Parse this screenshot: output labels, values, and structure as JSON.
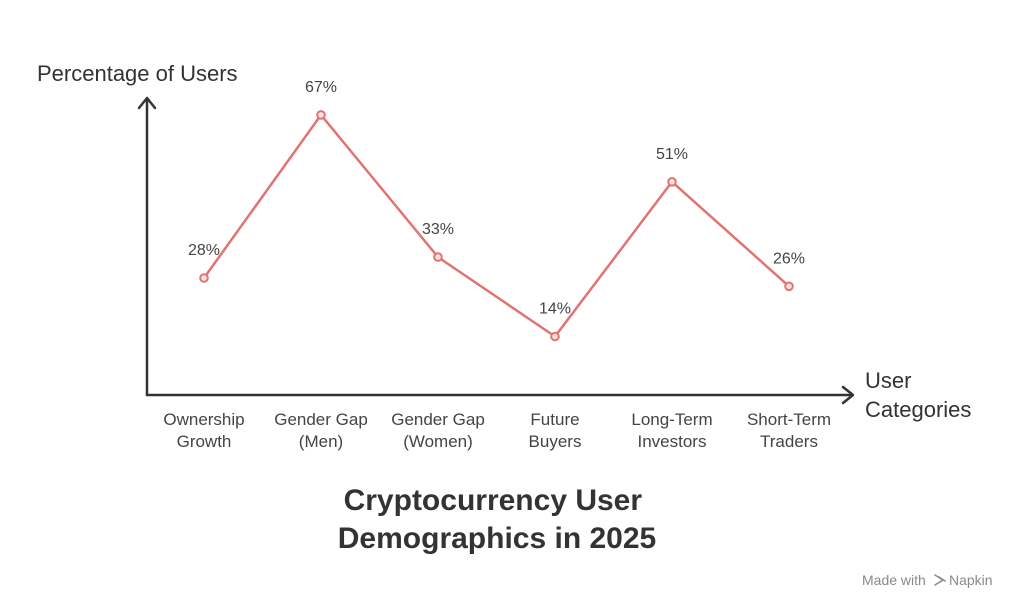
{
  "chart_data": {
    "type": "line",
    "title_lines": [
      "Cryptocurrency User",
      "Demographics in 2025"
    ],
    "ylabel": "Percentage of Users",
    "xlabel_lines": [
      "User",
      "Categories"
    ],
    "categories": [
      [
        "Ownership",
        "Growth"
      ],
      [
        "Gender Gap",
        "(Men)"
      ],
      [
        "Gender Gap",
        "(Women)"
      ],
      [
        "Future",
        "Buyers"
      ],
      [
        "Long-Term",
        "Investors"
      ],
      [
        "Short-Term",
        "Traders"
      ]
    ],
    "values": [
      28,
      67,
      33,
      14,
      51,
      26
    ],
    "value_labels": [
      "28%",
      "67%",
      "33%",
      "14%",
      "51%",
      "26%"
    ],
    "ylim": [
      0,
      80
    ],
    "grid": false,
    "series_color": "#e07470"
  },
  "credit": {
    "prefix": "Made with",
    "brand": "Napkin"
  }
}
